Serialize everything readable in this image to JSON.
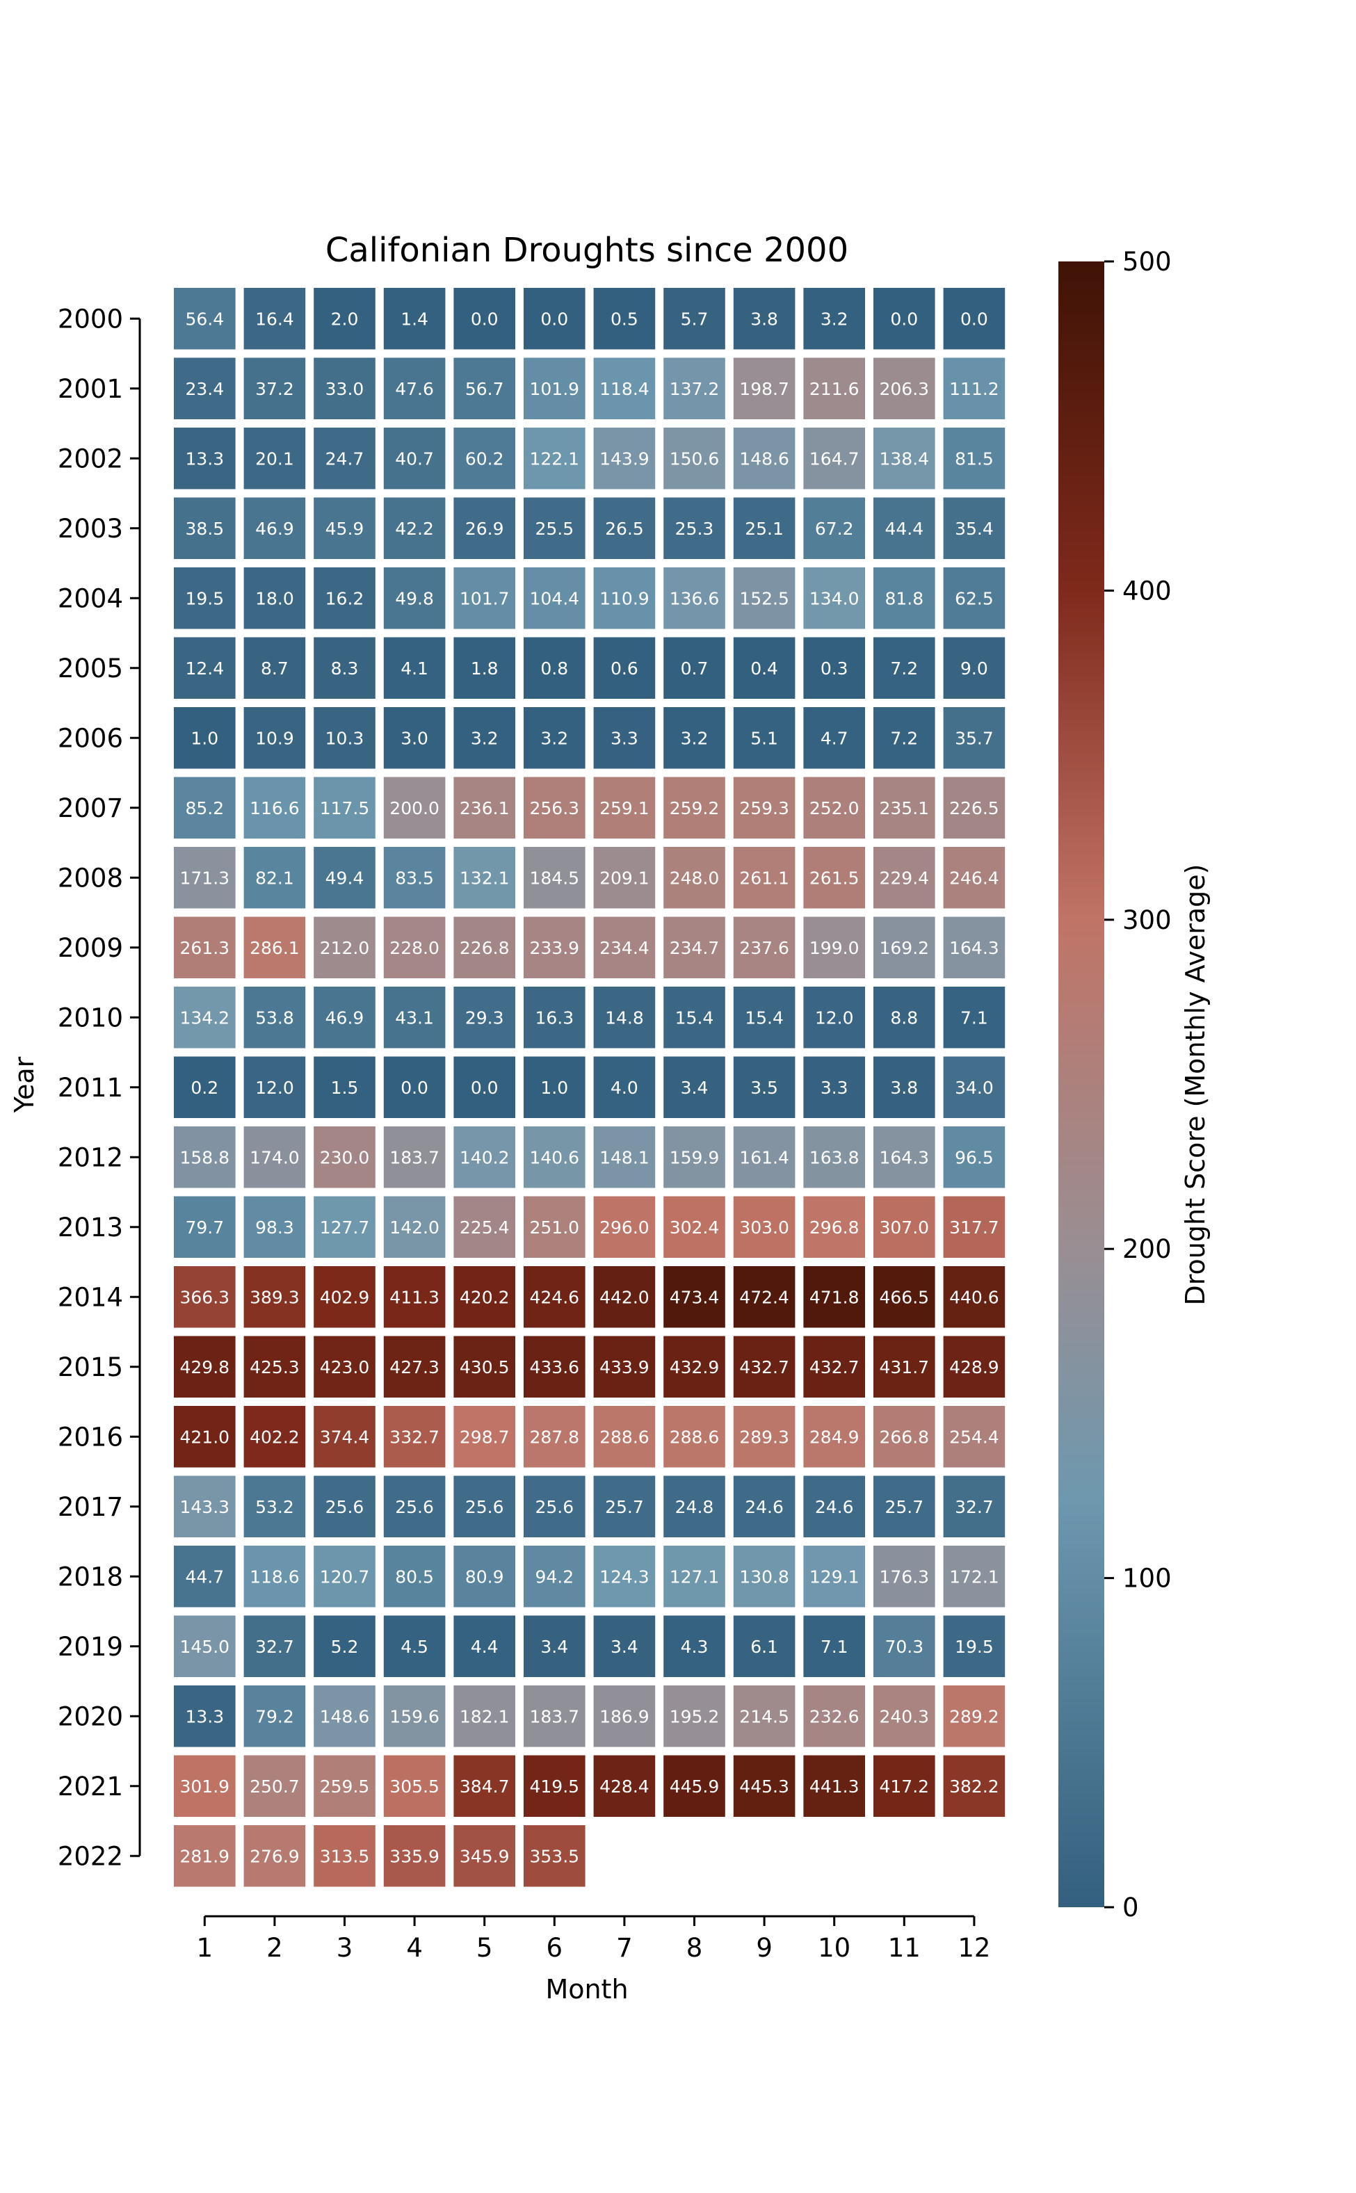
{
  "chart_data": {
    "type": "heatmap",
    "title": "Califonian Droughts since 2000",
    "xlabel": "Month",
    "ylabel": "Year",
    "x_categories": [
      "1",
      "2",
      "3",
      "4",
      "5",
      "6",
      "7",
      "8",
      "9",
      "10",
      "11",
      "12"
    ],
    "y_categories": [
      "2000",
      "2001",
      "2002",
      "2003",
      "2004",
      "2005",
      "2006",
      "2007",
      "2008",
      "2009",
      "2010",
      "2011",
      "2012",
      "2013",
      "2014",
      "2015",
      "2016",
      "2017",
      "2018",
      "2019",
      "2020",
      "2021",
      "2022"
    ],
    "values": [
      [
        56.4,
        16.4,
        2.0,
        1.4,
        0.0,
        0.0,
        0.5,
        5.7,
        3.8,
        3.2,
        0.0,
        0.0
      ],
      [
        23.4,
        37.2,
        33.0,
        47.6,
        56.7,
        101.9,
        118.4,
        137.2,
        198.7,
        211.6,
        206.3,
        111.2
      ],
      [
        13.3,
        20.1,
        24.7,
        40.7,
        60.2,
        122.1,
        143.9,
        150.6,
        148.6,
        164.7,
        138.4,
        81.5
      ],
      [
        38.5,
        46.9,
        45.9,
        42.2,
        26.9,
        25.5,
        26.5,
        25.3,
        25.1,
        67.2,
        44.4,
        35.4
      ],
      [
        19.5,
        18.0,
        16.2,
        49.8,
        101.7,
        104.4,
        110.9,
        136.6,
        152.5,
        134.0,
        81.8,
        62.5
      ],
      [
        12.4,
        8.7,
        8.3,
        4.1,
        1.8,
        0.8,
        0.6,
        0.7,
        0.4,
        0.3,
        7.2,
        9.0
      ],
      [
        1.0,
        10.9,
        10.3,
        3.0,
        3.2,
        3.2,
        3.3,
        3.2,
        5.1,
        4.7,
        7.2,
        35.7
      ],
      [
        85.2,
        116.6,
        117.5,
        200.0,
        236.1,
        256.3,
        259.1,
        259.2,
        259.3,
        252.0,
        235.1,
        226.5
      ],
      [
        171.3,
        82.1,
        49.4,
        83.5,
        132.1,
        184.5,
        209.1,
        248.0,
        261.1,
        261.5,
        229.4,
        246.4
      ],
      [
        261.3,
        286.1,
        212.0,
        228.0,
        226.8,
        233.9,
        234.4,
        234.7,
        237.6,
        199.0,
        169.2,
        164.3
      ],
      [
        134.2,
        53.8,
        46.9,
        43.1,
        29.3,
        16.3,
        14.8,
        15.4,
        15.4,
        12.0,
        8.8,
        7.1
      ],
      [
        0.2,
        12.0,
        1.5,
        0.0,
        0.0,
        1.0,
        4.0,
        3.4,
        3.5,
        3.3,
        3.8,
        34.0
      ],
      [
        158.8,
        174.0,
        230.0,
        183.7,
        140.2,
        140.6,
        148.1,
        159.9,
        161.4,
        163.8,
        164.3,
        96.5
      ],
      [
        79.7,
        98.3,
        127.7,
        142.0,
        225.4,
        251.0,
        296.0,
        302.4,
        303.0,
        296.8,
        307.0,
        317.7
      ],
      [
        366.3,
        389.3,
        402.9,
        411.3,
        420.2,
        424.6,
        442.0,
        473.4,
        472.4,
        471.8,
        466.5,
        440.6
      ],
      [
        429.8,
        425.3,
        423.0,
        427.3,
        430.5,
        433.6,
        433.9,
        432.9,
        432.7,
        432.7,
        431.7,
        428.9
      ],
      [
        421.0,
        402.2,
        374.4,
        332.7,
        298.7,
        287.8,
        288.6,
        288.6,
        289.3,
        284.9,
        266.8,
        254.4
      ],
      [
        143.3,
        53.2,
        25.6,
        25.6,
        25.6,
        25.6,
        25.7,
        24.8,
        24.6,
        24.6,
        25.7,
        32.7
      ],
      [
        44.7,
        118.6,
        120.7,
        80.5,
        80.9,
        94.2,
        124.3,
        127.1,
        130.8,
        129.1,
        176.3,
        172.1
      ],
      [
        145.0,
        32.7,
        5.2,
        4.5,
        4.4,
        3.4,
        3.4,
        4.3,
        6.1,
        7.1,
        70.3,
        19.5
      ],
      [
        13.3,
        79.2,
        148.6,
        159.6,
        182.1,
        183.7,
        186.9,
        195.2,
        214.5,
        232.6,
        240.3,
        289.2
      ],
      [
        301.9,
        250.7,
        259.5,
        305.5,
        384.7,
        419.5,
        428.4,
        445.9,
        445.3,
        441.3,
        417.2,
        382.2
      ],
      [
        281.9,
        276.9,
        313.5,
        335.9,
        345.9,
        353.5,
        null,
        null,
        null,
        null,
        null,
        null
      ]
    ],
    "colorbar": {
      "label": "Drought Score (Monthly Average)",
      "range": [
        0,
        500
      ],
      "ticks": [
        0,
        100,
        200,
        300,
        400,
        500
      ]
    },
    "colors": {
      "low": "#34607f",
      "lowmid": "#6e98ae",
      "mid": "#998e93",
      "midhigh": "#c07466",
      "high": "#7f2a1b",
      "max": "#3f1306",
      "cell_border": "#ffffff",
      "axis": "#000000"
    }
  }
}
